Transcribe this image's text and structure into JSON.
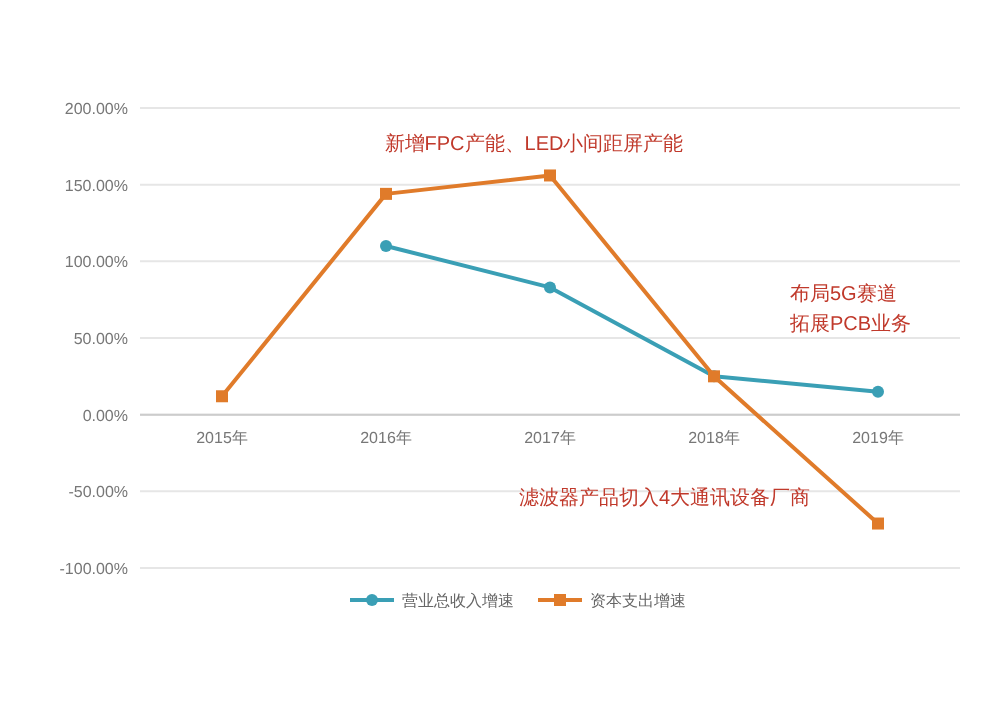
{
  "chart_data": {
    "type": "line",
    "categories": [
      "2015年",
      "2016年",
      "2017年",
      "2018年",
      "2019年"
    ],
    "series": [
      {
        "name": "营业总收入增速",
        "color": "#3a9fb5",
        "marker": "circle",
        "values": [
          null,
          110,
          83,
          25,
          15
        ]
      },
      {
        "name": "资本支出增速",
        "color": "#e07b2a",
        "marker": "square",
        "values": [
          12,
          144,
          156,
          25,
          -71
        ]
      }
    ],
    "ylim": [
      -100,
      200
    ],
    "yticks": [
      {
        "value": -100,
        "label": "-100.00%"
      },
      {
        "value": -50,
        "label": "-50.00%"
      },
      {
        "value": 0,
        "label": "0.00%"
      },
      {
        "value": 50,
        "label": "50.00%"
      },
      {
        "value": 100,
        "label": "100.00%"
      },
      {
        "value": 150,
        "label": "150.00%"
      },
      {
        "value": 200,
        "label": "200.00%"
      }
    ],
    "grid": "y",
    "legend": "bottom",
    "annotations": [
      "新增FPC产能、LED小间距屏产能",
      "布局5G赛道",
      "拓展PCB业务",
      "滤波器产品切入4大通讯设备厂商"
    ]
  }
}
